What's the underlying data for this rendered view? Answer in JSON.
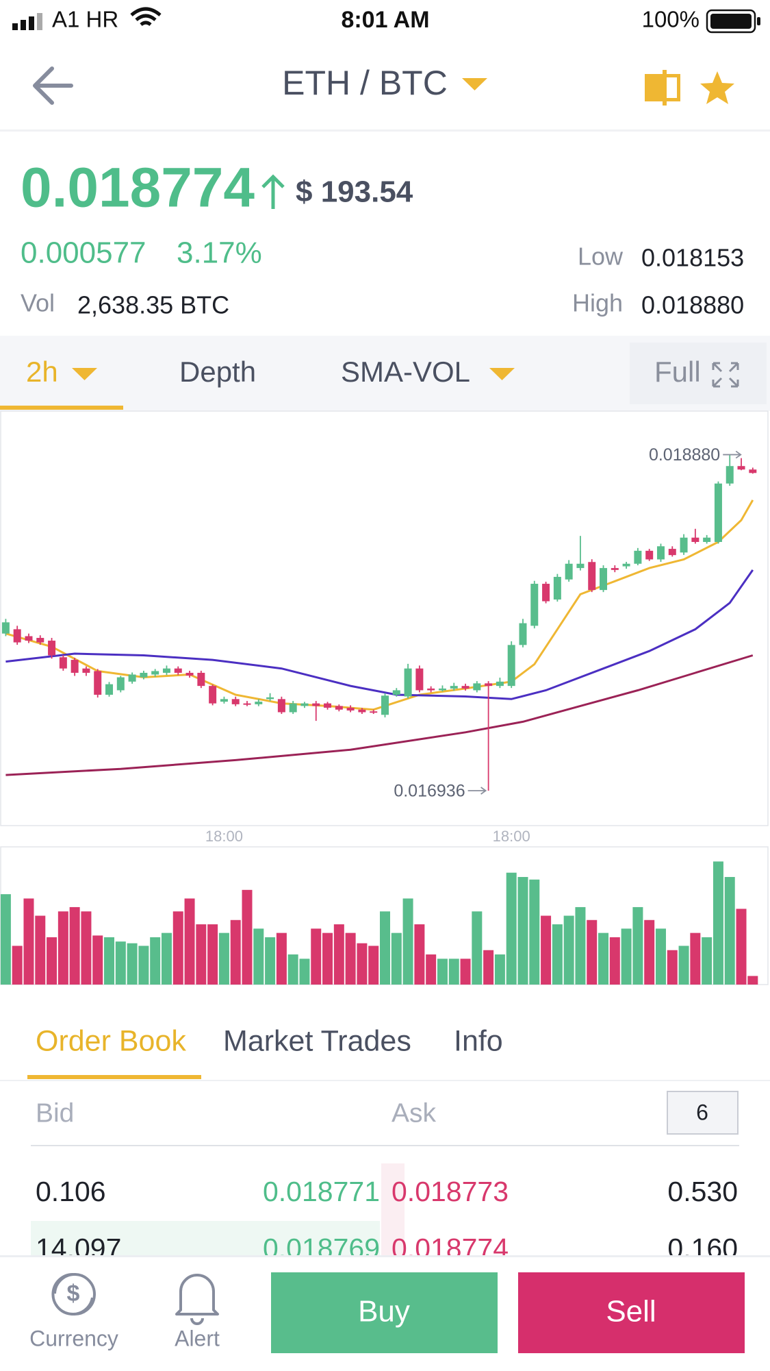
{
  "status_bar": {
    "carrier": "A1 HR",
    "time": "8:01 AM",
    "battery": "100%"
  },
  "header": {
    "pair": "ETH / BTC"
  },
  "ticker": {
    "price": "0.018774",
    "usd": "$ 193.54",
    "change": "0.000577",
    "change_pct": "3.17%",
    "low_label": "Low",
    "low": "0.018153",
    "high_label": "High",
    "high": "0.018880",
    "vol_label": "Vol",
    "vol": "2,638.35 BTC"
  },
  "chart_tabs": [
    "2h",
    "Depth",
    "SMA-VOL",
    "Full"
  ],
  "chart_data": {
    "type": "candlestick",
    "open": [
      0.017845,
      0.01787,
      0.01783,
      0.01782,
      0.017804,
      0.017708,
      0.017693,
      0.017643,
      0.017628,
      0.017491,
      0.017517,
      0.017567,
      0.017592,
      0.017608,
      0.017618,
      0.017643,
      0.017618,
      0.017618,
      0.017542,
      0.017451,
      0.017466,
      0.017441,
      0.017436,
      0.017466,
      0.017466,
      0.01739,
      0.017426,
      0.017441,
      0.017441,
      0.017426,
      0.017416,
      0.017405,
      0.017395,
      0.017375,
      0.017491,
      0.017481,
      0.017643,
      0.017527,
      0.017517,
      0.017527,
      0.017542,
      0.017517,
      0.017557,
      0.017542,
      0.017542,
      0.017779,
      0.01789,
      0.018133,
      0.018042,
      0.018158,
      0.018224,
      0.018259,
      0.018097,
      0.018224,
      0.018234,
      0.018249,
      0.018324,
      0.018274,
      0.018335,
      0.018314,
      0.0184,
      0.018375,
      0.018375,
      0.018713,
      0.018814,
      0.018794
    ],
    "high": [
      0.01793,
      0.01789,
      0.017845,
      0.017835,
      0.01782,
      0.01772,
      0.017705,
      0.017655,
      0.01764,
      0.017565,
      0.0176,
      0.01762,
      0.01763,
      0.01764,
      0.01766,
      0.017655,
      0.01763,
      0.01763,
      0.01755,
      0.01748,
      0.01748,
      0.017455,
      0.017465,
      0.0175,
      0.01748,
      0.017455,
      0.01745,
      0.017455,
      0.01745,
      0.017435,
      0.01743,
      0.017415,
      0.017405,
      0.0175,
      0.01753,
      0.01767,
      0.01766,
      0.01754,
      0.017545,
      0.01756,
      0.017555,
      0.01757,
      0.01757,
      0.01759,
      0.0178,
      0.01793,
      0.01815,
      0.018145,
      0.01819,
      0.01827,
      0.01841,
      0.018275,
      0.01824,
      0.01824,
      0.01826,
      0.01834,
      0.018335,
      0.018365,
      0.01835,
      0.01842,
      0.018451,
      0.018415,
      0.018725,
      0.01888,
      0.01886,
      0.018805
    ],
    "low": [
      0.01783,
      0.01778,
      0.01779,
      0.01778,
      0.0177,
      0.01763,
      0.0176,
      0.0176,
      0.017475,
      0.01748,
      0.017505,
      0.017555,
      0.01758,
      0.017595,
      0.017605,
      0.017605,
      0.01759,
      0.01753,
      0.01743,
      0.01744,
      0.017425,
      0.017425,
      0.017425,
      0.017455,
      0.01738,
      0.01738,
      0.017415,
      0.01734,
      0.017405,
      0.017395,
      0.01739,
      0.01738,
      0.01738,
      0.01736,
      0.01748,
      0.01747,
      0.017505,
      0.017505,
      0.01751,
      0.017515,
      0.017515,
      0.017505,
      0.016936,
      0.01753,
      0.01753,
      0.017765,
      0.017875,
      0.01802,
      0.01803,
      0.018145,
      0.01821,
      0.018085,
      0.018085,
      0.0182,
      0.01822,
      0.01824,
      0.018265,
      0.01826,
      0.01829,
      0.0183,
      0.018365,
      0.018365,
      0.018365,
      0.0187,
      0.01879,
      0.01877
    ],
    "close": [
      0.01791,
      0.017794,
      0.017804,
      0.017794,
      0.017719,
      0.017643,
      0.017618,
      0.017618,
      0.017491,
      0.017552,
      0.017592,
      0.017608,
      0.017618,
      0.017628,
      0.017643,
      0.017618,
      0.017602,
      0.017542,
      0.017441,
      0.017466,
      0.017436,
      0.017436,
      0.017451,
      0.017476,
      0.01739,
      0.017441,
      0.017441,
      0.017426,
      0.017416,
      0.017405,
      0.0174,
      0.01739,
      0.01739,
      0.017486,
      0.017517,
      0.017643,
      0.017517,
      0.017517,
      0.017527,
      0.017542,
      0.017527,
      0.017557,
      0.017542,
      0.017567,
      0.017779,
      0.017905,
      0.018133,
      0.018032,
      0.018173,
      0.018249,
      0.018249,
      0.018097,
      0.018224,
      0.018213,
      0.018249,
      0.018324,
      0.018274,
      0.01835,
      0.018299,
      0.0184,
      0.018375,
      0.0184,
      0.018713,
      0.018814,
      0.018794,
      0.018774
    ],
    "xlim": [
      -0.5,
      66.5
    ],
    "ylim": [
      0.016734,
      0.019132
    ],
    "xticks": [
      {
        "value": 19,
        "label": "18:00"
      },
      {
        "value": 44,
        "label": "18:00"
      }
    ],
    "annotations": [
      "0.018880",
      "0.016936"
    ],
    "up_color": "#58bd8c",
    "down_color": "#d8386c",
    "moving_averages": [
      {
        "color": "#efb733",
        "x": [
          0,
          4,
          8,
          12,
          16,
          20,
          24,
          28,
          32,
          36,
          40,
          44,
          46,
          48,
          50,
          53,
          56,
          59,
          62,
          64,
          65
        ],
        "values": [
          0.017845,
          0.017769,
          0.017628,
          0.017592,
          0.017608,
          0.017491,
          0.017441,
          0.017426,
          0.017405,
          0.017491,
          0.017527,
          0.017567,
          0.017668,
          0.01787,
          0.018072,
          0.018148,
          0.018224,
          0.018274,
          0.018375,
          0.018501,
          0.018617
        ]
      },
      {
        "color": "#4b2fc2",
        "x": [
          0,
          6,
          12,
          18,
          24,
          30,
          34,
          40,
          44,
          47,
          52,
          56,
          60,
          63,
          65
        ],
        "values": [
          0.017683,
          0.017729,
          0.017719,
          0.017693,
          0.017643,
          0.017542,
          0.017491,
          0.017481,
          0.017466,
          0.017517,
          0.017643,
          0.017744,
          0.01787,
          0.018022,
          0.018213
        ]
      },
      {
        "color": "#9b2256",
        "x": [
          0,
          10,
          20,
          30,
          40,
          45,
          50,
          55,
          60,
          65
        ],
        "values": [
          0.017027,
          0.017062,
          0.017113,
          0.017173,
          0.017274,
          0.017335,
          0.017426,
          0.017517,
          0.017618,
          0.017719
        ]
      }
    ],
    "volume": {
      "ylim": [
        0,
        160
      ],
      "values": [
        105,
        45,
        100,
        80,
        55,
        85,
        90,
        85,
        57,
        55,
        50,
        48,
        45,
        55,
        60,
        85,
        100,
        70,
        70,
        60,
        75,
        110,
        65,
        55,
        60,
        35,
        30,
        65,
        60,
        70,
        60,
        48,
        45,
        85,
        60,
        100,
        70,
        35,
        30,
        30,
        30,
        85,
        40,
        35,
        130,
        125,
        122,
        80,
        70,
        80,
        90,
        75,
        60,
        55,
        65,
        90,
        75,
        65,
        40,
        45,
        60,
        55,
        143,
        125,
        88,
        10
      ]
    }
  },
  "order_tabs": [
    "Order Book",
    "Market Trades",
    "Info"
  ],
  "order_book": {
    "bid": "Bid",
    "ask": "Ask",
    "depth": "6",
    "rows": [
      [
        "0.106",
        "0.018771",
        "0.018773",
        "0.530"
      ],
      [
        "14.097",
        "0.018769",
        "0.018774",
        "0.160"
      ]
    ]
  },
  "bottom_bar": {
    "currency": "Currency",
    "alert": "Alert",
    "buy": "Buy",
    "sell": "Sell"
  }
}
